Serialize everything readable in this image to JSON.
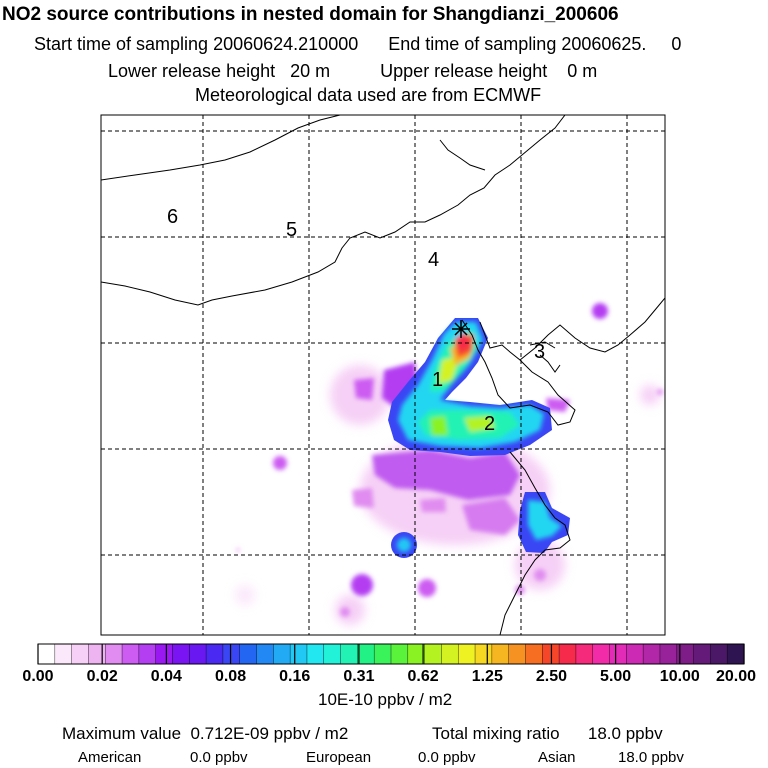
{
  "header": {
    "title": "NO2 source contributions in nested domain for Shangdianzi_200606",
    "start_label": "Start time of sampling 20060624.210000",
    "end_label": "End time of sampling 20060625.     0",
    "lower_release": "Lower release height   20 m",
    "upper_release": "Upper release height    0 m",
    "met_data": "Meteorological data used are from ECMWF"
  },
  "map": {
    "region_labels": [
      "1",
      "2",
      "3",
      "4",
      "5",
      "6"
    ],
    "station_marker": "star-icon"
  },
  "colorbar": {
    "ticks": [
      "0.00",
      "0.02",
      "0.04",
      "0.08",
      "0.16",
      "0.31",
      "0.62",
      "1.25",
      "2.50",
      "5.00",
      "10.00",
      "20.00"
    ],
    "units": "10E-10 ppbv / m2",
    "colors": [
      "#ffffff",
      "#fbe8fb",
      "#f6d0f6",
      "#eeb4f2",
      "#e08cf0",
      "#cc5cf2",
      "#b43ef2",
      "#9a18f2",
      "#7a14f2",
      "#6a18f2",
      "#4a2af2",
      "#3a46f4",
      "#2266f2",
      "#2288f4",
      "#22aaf4",
      "#22c8f4",
      "#22e6f0",
      "#22f2d8",
      "#22f2b4",
      "#22f286",
      "#3af25a",
      "#5af23a",
      "#8af222",
      "#b4f222",
      "#d4f222",
      "#eef222",
      "#f6d822",
      "#f6b622",
      "#f69222",
      "#f66e22",
      "#f6462a",
      "#f62a4a",
      "#f62a7a",
      "#f22ca8",
      "#e22cb8",
      "#cc2ab4",
      "#b226a8",
      "#98229a",
      "#7e1c88",
      "#641a78",
      "#4a1866",
      "#2e1450"
    ]
  },
  "footer": {
    "max_value": "Maximum value  0.712E-09 ppbv / m2",
    "total_mixing": "Total mixing ratio      18.0 ppbv",
    "american_label": "American",
    "american_value": "0.0 ppbv",
    "european_label": "European",
    "european_value": "0.0 ppbv",
    "asian_label": "Asian",
    "asian_value": "18.0 ppbv"
  }
}
